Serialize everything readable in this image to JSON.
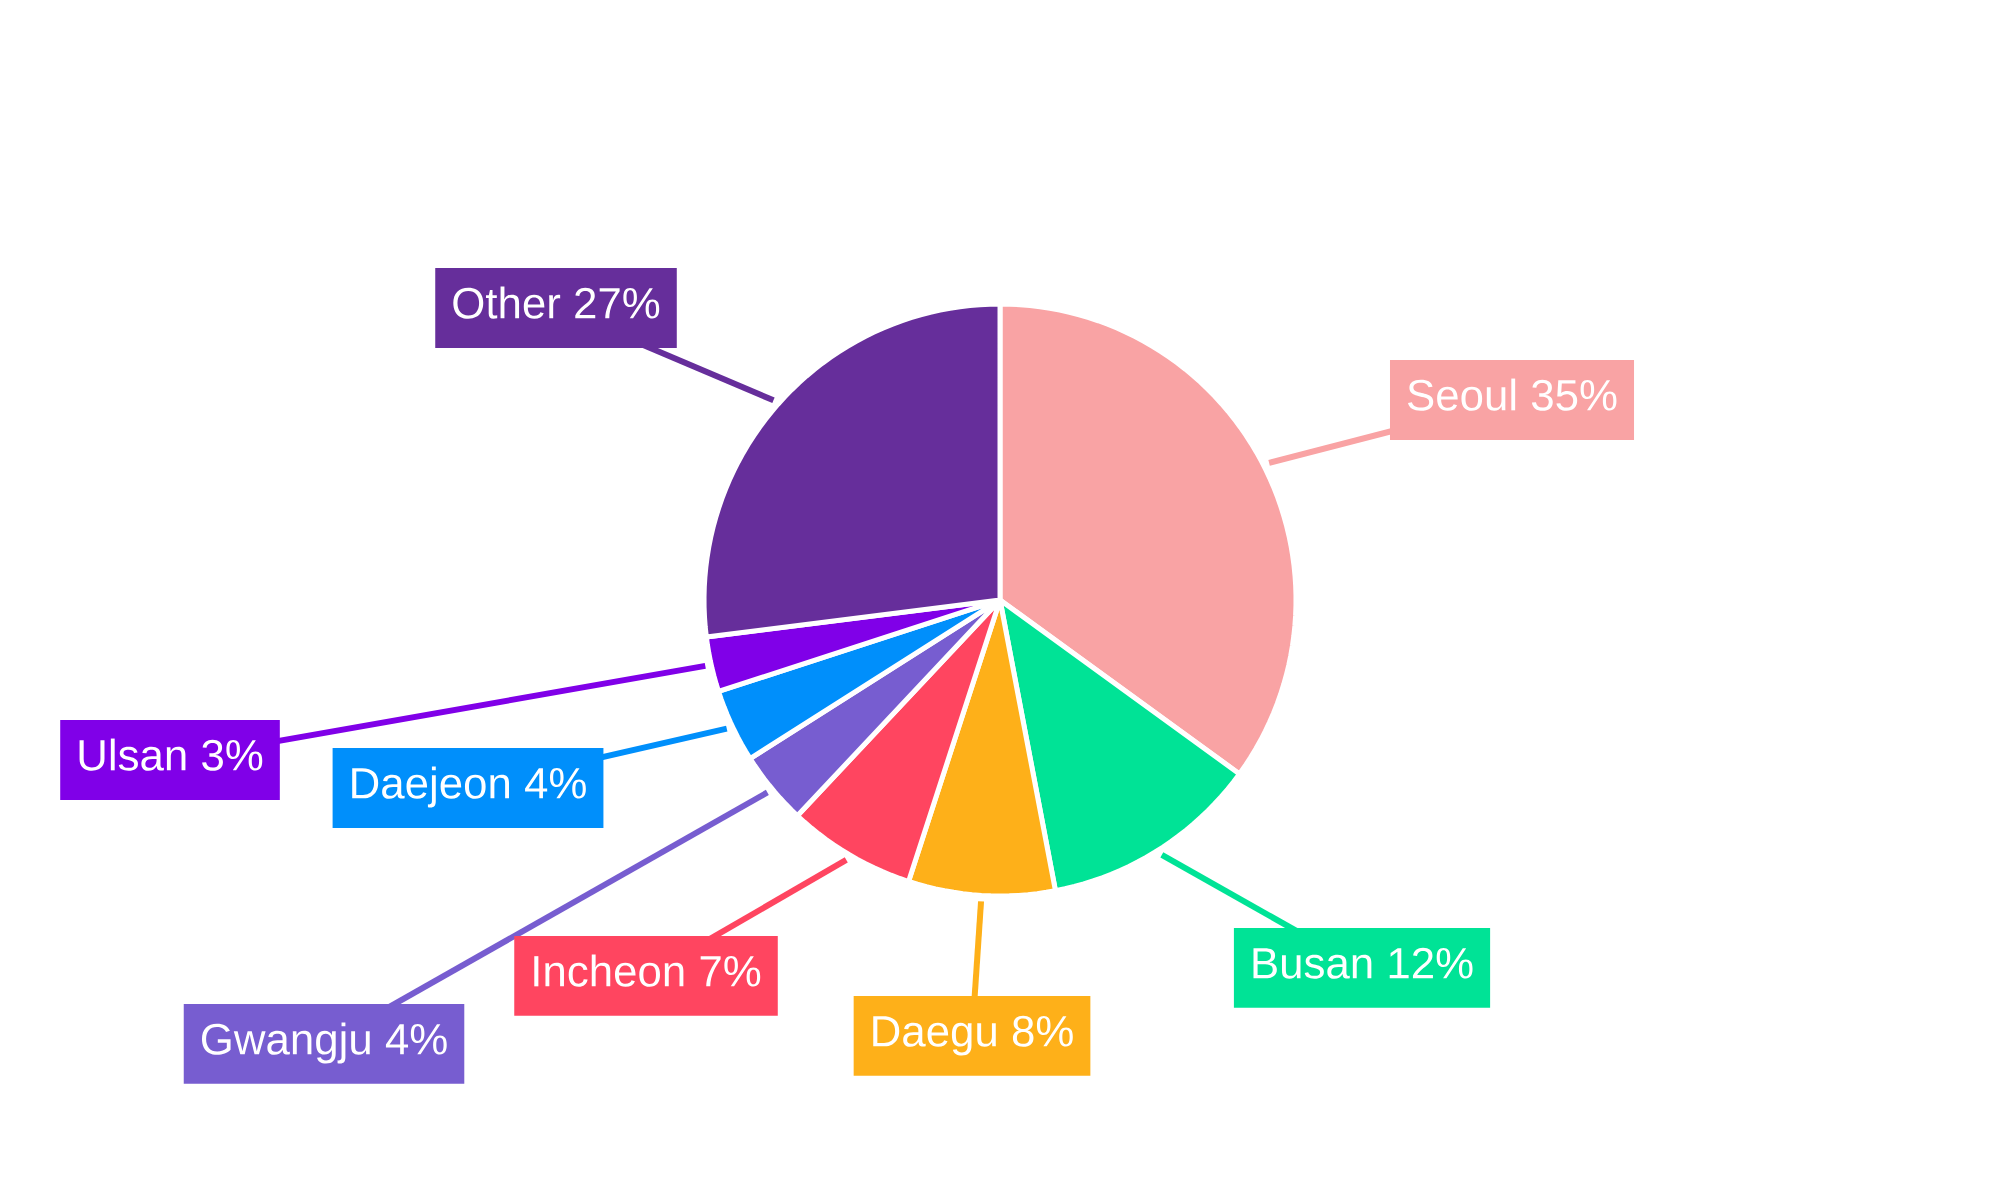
{
  "chart_data": {
    "type": "pie",
    "categories": [
      "Seoul",
      "Busan",
      "Daegu",
      "Incheon",
      "Gwangju",
      "Daejeon",
      "Ulsan",
      "Other"
    ],
    "values": [
      35,
      12,
      8,
      7,
      4,
      4,
      3,
      27
    ],
    "value_labels": [
      "35%",
      "12%",
      "8%",
      "7%",
      "4%",
      "4%",
      "3%",
      "27%"
    ],
    "colors": [
      "#f9a3a4",
      "#00e396",
      "#feb019",
      "#ff4560",
      "#775dd0",
      "#008ffb",
      "#8000e8",
      "#662e9b"
    ]
  }
}
